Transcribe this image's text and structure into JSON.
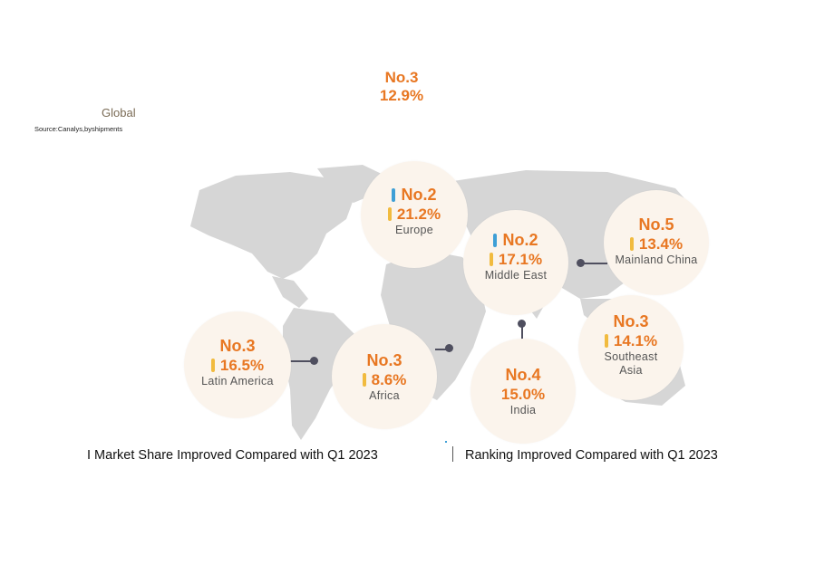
{
  "global": {
    "rank": "No.3",
    "share": "12.9%",
    "label": "Global",
    "source": "Source:Canalys,byshipments"
  },
  "regions": [
    {
      "rank": "No.2",
      "share": "21.2%",
      "name": "Europe",
      "rank_improved": true,
      "share_improved": true
    },
    {
      "rank": "No.2",
      "share": "17.1%",
      "name": "Middle East",
      "rank_improved": true,
      "share_improved": true
    },
    {
      "rank": "No.5",
      "share": "13.4%",
      "name": "Mainland China",
      "rank_improved": false,
      "share_improved": true
    },
    {
      "rank": "No.3",
      "share": "16.5%",
      "name": "Latin America",
      "rank_improved": false,
      "share_improved": true
    },
    {
      "rank": "No.3",
      "share": "8.6%",
      "name": "Africa",
      "rank_improved": false,
      "share_improved": true
    },
    {
      "rank": "No.4",
      "share": "15.0%",
      "name": "India",
      "rank_improved": false,
      "share_improved": false
    },
    {
      "rank": "No.3",
      "share": "14.1%",
      "name": "Southeast Asia",
      "rank_improved": false,
      "share_improved": true
    }
  ],
  "legend": {
    "share_improved": "I Market Share Improved Compared with Q1 2023",
    "rank_improved": "Ranking Improved Compared with Q1 2023"
  },
  "colors": {
    "accent_orange": "#e87722",
    "share_indicator": "#f1bb3f",
    "rank_indicator": "#3e9fd6",
    "map": "#d6d6d6",
    "bubble": "#fbf4ec"
  }
}
